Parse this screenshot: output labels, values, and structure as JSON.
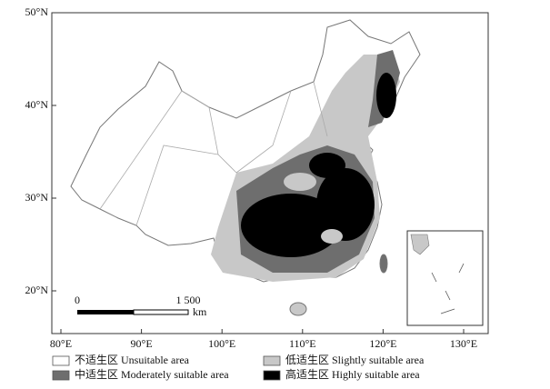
{
  "map": {
    "latitude_labels": [
      "50°N",
      "40°N",
      "30°N",
      "20°N"
    ],
    "longitude_labels": [
      "80°E",
      "90°E",
      "100°E",
      "110°E",
      "120°E",
      "130°E"
    ],
    "scale_bar": {
      "start": "0",
      "end": "1 500",
      "unit": "km"
    },
    "legend": [
      {
        "label": "不适生区 Unsuitable area",
        "color": "#ffffff"
      },
      {
        "label": "低适生区 Slightly suitable area",
        "color": "#c8c8c8"
      },
      {
        "label": "中适生区 Moderately suitable area",
        "color": "#6e6e6e"
      },
      {
        "label": "高适生区 Highly suitable area",
        "color": "#000000"
      }
    ]
  }
}
